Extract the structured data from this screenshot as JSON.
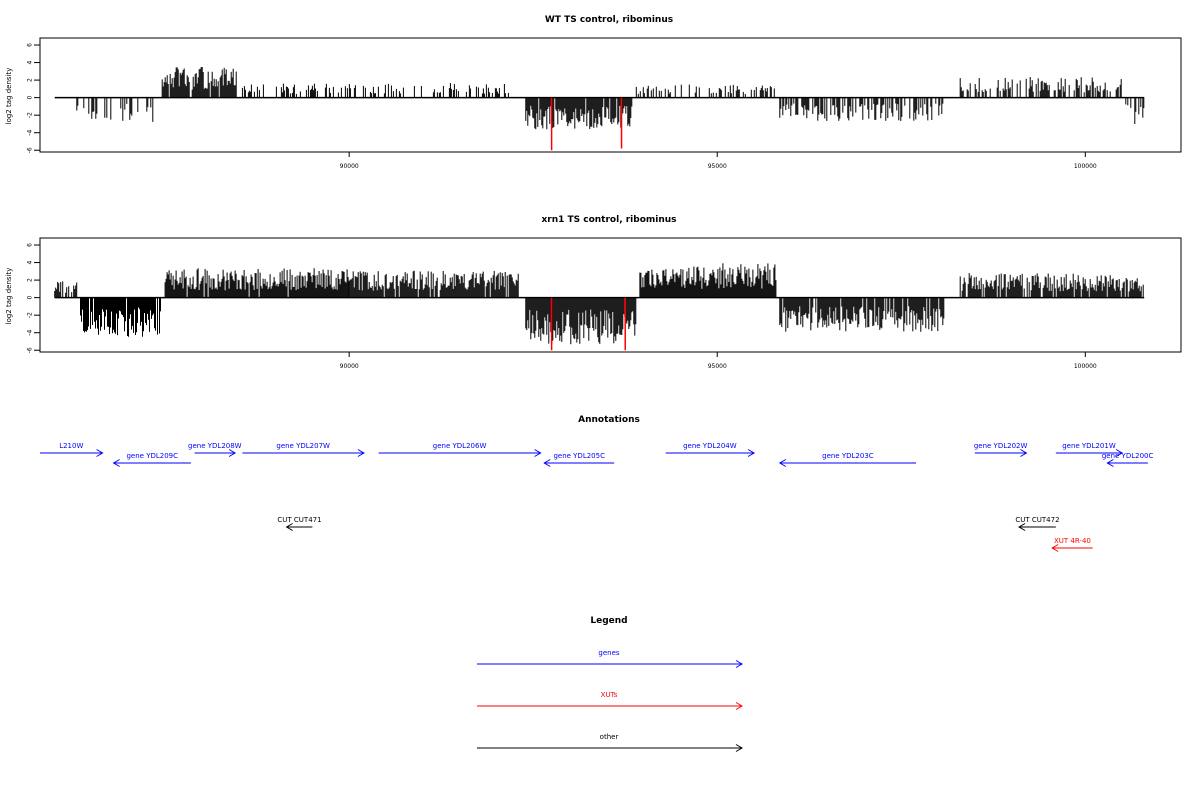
{
  "chart_data": [
    {
      "type": "bar",
      "title": "WT TS control, ribominus",
      "xlabel": "",
      "ylabel": "log2 tag density",
      "xlim": [
        85800,
        101300
      ],
      "ylim": [
        -6.2,
        6.8
      ],
      "x_ticks": [
        "90000",
        "95000",
        "100000"
      ],
      "y_ticks": [
        "6",
        "4",
        "2",
        "0",
        "-2",
        "-4",
        "-6"
      ],
      "colors": {
        "default": "#000000",
        "highlight": "#ff0000"
      },
      "segments": [
        {
          "from": 86000,
          "to": 86200,
          "level": 1.0,
          "density": 0.05,
          "seed": 11
        },
        {
          "from": 86300,
          "to": 87350,
          "level": -2.0,
          "density": 0.3,
          "seed": 12
        },
        {
          "from": 87460,
          "to": 88500,
          "level": 2.5,
          "density": 0.95,
          "seed": 13
        },
        {
          "from": 88550,
          "to": 92200,
          "level": 1.2,
          "density": 0.4,
          "seed": 14
        },
        {
          "from": 92400,
          "to": 93850,
          "level": -2.6,
          "density": 0.95,
          "seed": 15
        },
        {
          "from": 93900,
          "to": 95800,
          "level": 1.1,
          "density": 0.35,
          "seed": 16
        },
        {
          "from": 95850,
          "to": 98100,
          "level": -1.9,
          "density": 0.55,
          "seed": 17
        },
        {
          "from": 98300,
          "to": 100500,
          "level": 1.7,
          "density": 0.55,
          "seed": 18
        },
        {
          "from": 100550,
          "to": 100800,
          "level": -2.2,
          "density": 0.4,
          "seed": 19
        }
      ],
      "highlights": [
        {
          "x": 92750,
          "value": -6.0
        },
        {
          "x": 93700,
          "value": -5.8
        }
      ]
    },
    {
      "type": "bar",
      "title": "xrn1 TS control, ribominus",
      "xlabel": "",
      "ylabel": "log2 tag density",
      "xlim": [
        85800,
        101300
      ],
      "ylim": [
        -6.2,
        6.8
      ],
      "x_ticks": [
        "90000",
        "95000",
        "100000"
      ],
      "y_ticks": [
        "6",
        "4",
        "2",
        "0",
        "-2",
        "-4",
        "-6"
      ],
      "colors": {
        "default": "#000000",
        "highlight": "#ff0000"
      },
      "segments": [
        {
          "from": 86000,
          "to": 86300,
          "level": 1.4,
          "density": 0.5,
          "seed": 21
        },
        {
          "from": 86350,
          "to": 87450,
          "level": -3.2,
          "density": 0.95,
          "seed": 22
        },
        {
          "from": 87500,
          "to": 90000,
          "level": 2.4,
          "density": 0.95,
          "seed": 23
        },
        {
          "from": 90000,
          "to": 92300,
          "level": 2.2,
          "density": 0.9,
          "seed": 24
        },
        {
          "from": 92400,
          "to": 93900,
          "level": -3.8,
          "density": 1.0,
          "seed": 25
        },
        {
          "from": 93950,
          "to": 95800,
          "level": 2.8,
          "density": 1.0,
          "seed": 26
        },
        {
          "from": 95850,
          "to": 98100,
          "level": -2.8,
          "density": 0.85,
          "seed": 27
        },
        {
          "from": 98300,
          "to": 100800,
          "level": 2.0,
          "density": 0.85,
          "seed": 28
        }
      ],
      "highlights": [
        {
          "x": 92750,
          "value": -6.0
        },
        {
          "x": 93750,
          "value": -6.0
        }
      ]
    }
  ],
  "annotations": {
    "title": "Annotations",
    "xlim": [
      85800,
      101300
    ],
    "colors": {
      "genes": "#0000ff",
      "XUTs": "#ff0000",
      "other": "#000000"
    },
    "rows": [
      {
        "label": "L210W",
        "from": 85800,
        "to": 86650,
        "strand": "+",
        "row": 0,
        "kind": "genes"
      },
      {
        "label": "gene YDL209C",
        "from": 86800,
        "to": 87850,
        "strand": "-",
        "row": 1,
        "kind": "genes"
      },
      {
        "label": "gene YDL208W",
        "from": 87900,
        "to": 88450,
        "strand": "+",
        "row": 0,
        "kind": "genes"
      },
      {
        "label": "gene YDL207W",
        "from": 88550,
        "to": 90200,
        "strand": "+",
        "row": 0,
        "kind": "genes"
      },
      {
        "label": "gene YDL206W",
        "from": 90400,
        "to": 92600,
        "strand": "+",
        "row": 0,
        "kind": "genes"
      },
      {
        "label": "gene YDL205C",
        "from": 92650,
        "to": 93600,
        "strand": "-",
        "row": 1,
        "kind": "genes"
      },
      {
        "label": "gene YDL204W",
        "from": 94300,
        "to": 95500,
        "strand": "+",
        "row": 0,
        "kind": "genes"
      },
      {
        "label": "gene YDL203C",
        "from": 95850,
        "to": 97700,
        "strand": "-",
        "row": 1,
        "kind": "genes"
      },
      {
        "label": "gene YDL202W",
        "from": 98500,
        "to": 99200,
        "strand": "+",
        "row": 0,
        "kind": "genes"
      },
      {
        "label": "gene YDL201W",
        "from": 99600,
        "to": 100500,
        "strand": "+",
        "row": 0,
        "kind": "genes"
      },
      {
        "label": "gene YDL200C",
        "from": 100300,
        "to": 100850,
        "strand": "-",
        "row": 1,
        "kind": "genes"
      },
      {
        "label": "CUT CUT471",
        "from": 89150,
        "to": 89500,
        "strand": "-",
        "row": 3,
        "kind": "other"
      },
      {
        "label": "CUT CUT472",
        "from": 99100,
        "to": 99600,
        "strand": "-",
        "row": 3,
        "kind": "other"
      },
      {
        "label": "XUT 4R-40",
        "from": 99550,
        "to": 100100,
        "strand": "-",
        "row": 4,
        "kind": "XUTs"
      }
    ]
  },
  "legend": {
    "title": "Legend",
    "items": [
      {
        "label": "genes",
        "color": "#0000ff"
      },
      {
        "label": "XUTs",
        "color": "#ff0000"
      },
      {
        "label": "other",
        "color": "#000000"
      }
    ]
  }
}
